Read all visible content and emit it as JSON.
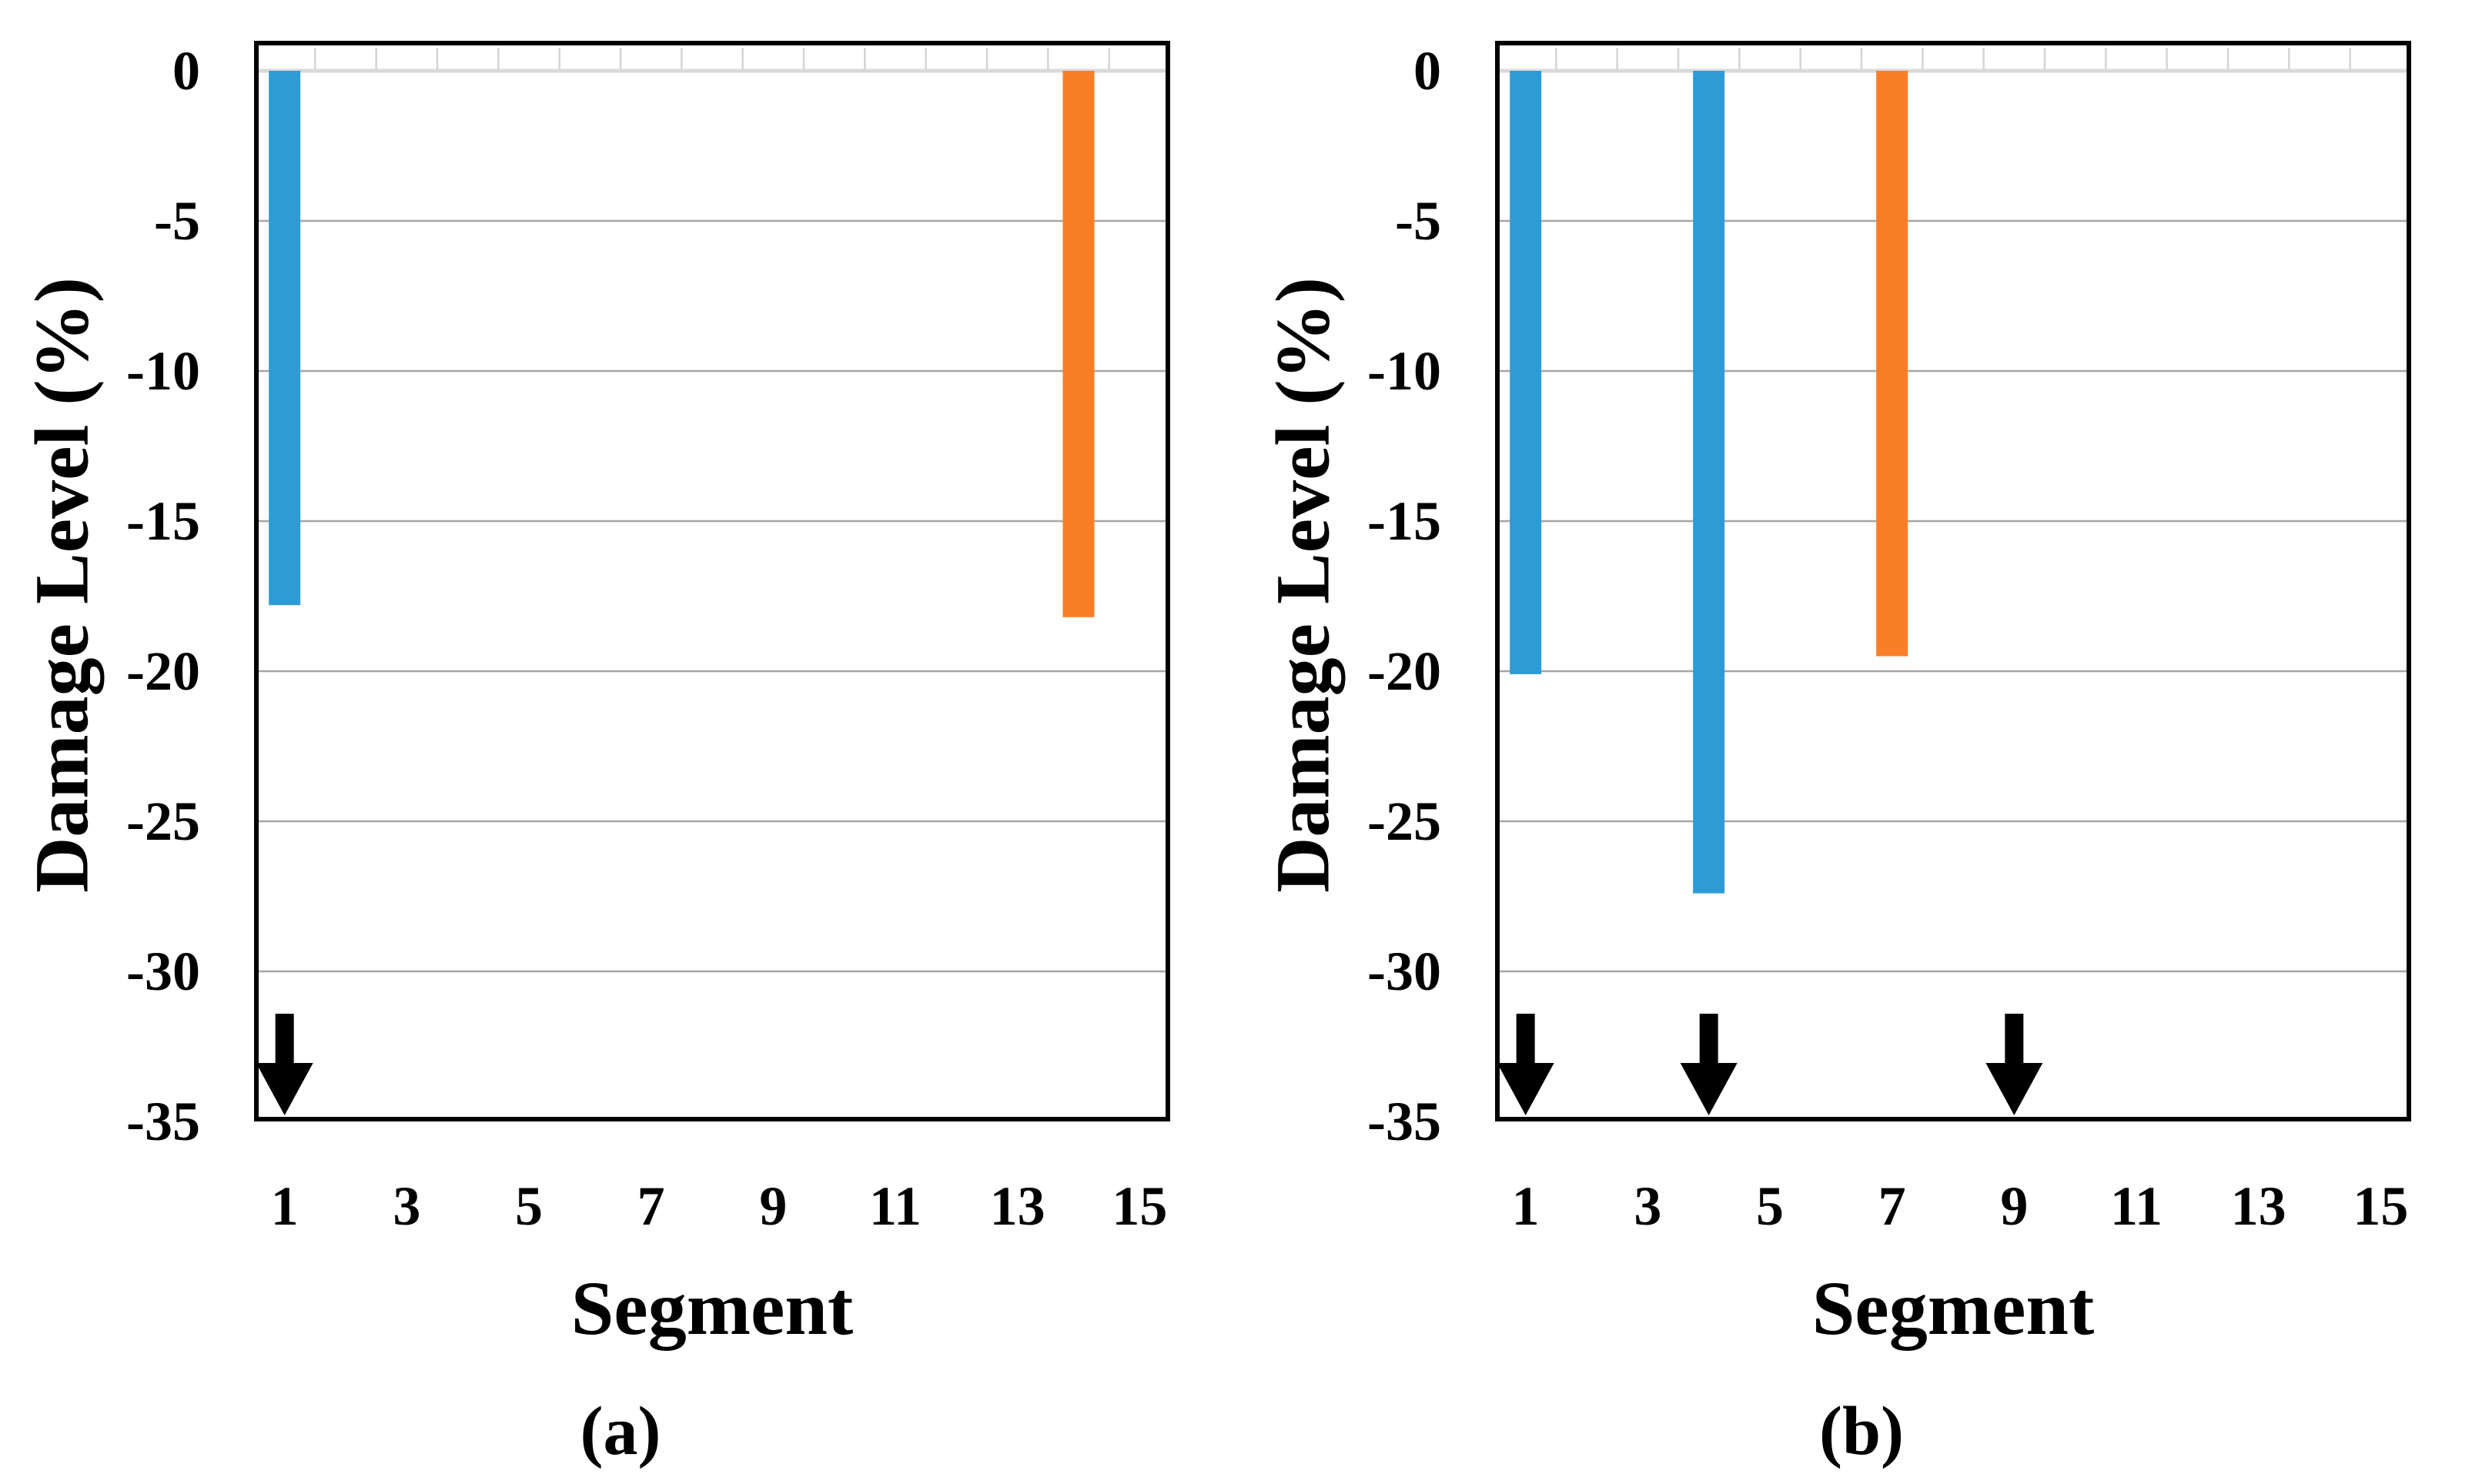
{
  "colors": {
    "blue": "#2E9BD6",
    "orange": "#F97E27",
    "grid": "#A6A6A6",
    "zero_line": "#D9D9D9",
    "band_tick": "#D4D4D4",
    "axis": "#000000",
    "arrow": "#000000",
    "background": "#FFFFFF"
  },
  "chart_data": [
    {
      "panel": "a",
      "type": "bar",
      "title": "",
      "xlabel": "Segment",
      "ylabel": "Damage Level (%)",
      "caption": "(a)",
      "segments": 15,
      "ylim": [
        -35,
        0
      ],
      "ytick_interval": 5,
      "grid": true,
      "legend": "none",
      "x_ticks": [
        "1",
        "3",
        "5",
        "7",
        "9",
        "11",
        "13",
        "15"
      ],
      "y_ticks": [
        "0",
        "-5",
        "-10",
        "-15",
        "-20",
        "-25",
        "-30",
        "-35"
      ],
      "bars": [
        {
          "segment": 1,
          "value": -17.8,
          "color": "blue"
        },
        {
          "segment": 14,
          "value": -18.2,
          "color": "orange"
        }
      ],
      "damage_arrows_at_segments": [
        1
      ]
    },
    {
      "panel": "b",
      "type": "bar",
      "title": "",
      "xlabel": "Segment",
      "ylabel": "Damage Level (%)",
      "caption": "(b)",
      "segments": 15,
      "ylim": [
        -35,
        0
      ],
      "ytick_interval": 5,
      "grid": true,
      "legend": "none",
      "x_ticks": [
        "1",
        "3",
        "5",
        "7",
        "9",
        "11",
        "13",
        "15"
      ],
      "y_ticks": [
        "0",
        "-5",
        "-10",
        "-15",
        "-20",
        "-25",
        "-30",
        "-35"
      ],
      "bars": [
        {
          "segment": 1,
          "value": -20.1,
          "color": "blue"
        },
        {
          "segment": 4,
          "value": -27.4,
          "color": "blue"
        },
        {
          "segment": 7,
          "value": -19.5,
          "color": "orange"
        }
      ],
      "damage_arrows_at_segments": [
        1,
        4,
        9
      ]
    }
  ]
}
